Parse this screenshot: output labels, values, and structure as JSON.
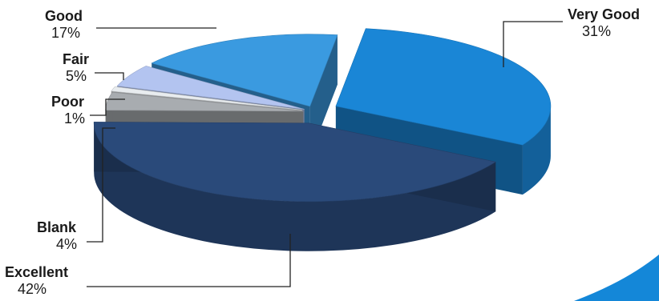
{
  "chart_data": {
    "type": "pie",
    "title": "",
    "three_d": true,
    "exploded": true,
    "legend": "none",
    "slices": [
      {
        "label": "Very Good",
        "value": 31,
        "percent_text": "31%",
        "color": "#1a86d6"
      },
      {
        "label": "Excellent",
        "value": 42,
        "percent_text": "42%",
        "color": "#2a4a7a"
      },
      {
        "label": "Blank",
        "value": 4,
        "percent_text": "4%",
        "color": "#a8acb0"
      },
      {
        "label": "Poor",
        "value": 1,
        "percent_text": "1%",
        "color": "#e8ecef"
      },
      {
        "label": "Fair",
        "value": 5,
        "percent_text": "5%",
        "color": "#b3c4f0"
      },
      {
        "label": "Good",
        "value": 17,
        "percent_text": "17%",
        "color": "#3a9ae0"
      }
    ]
  },
  "decor": {
    "corner_shape_color": "#1487d8"
  }
}
